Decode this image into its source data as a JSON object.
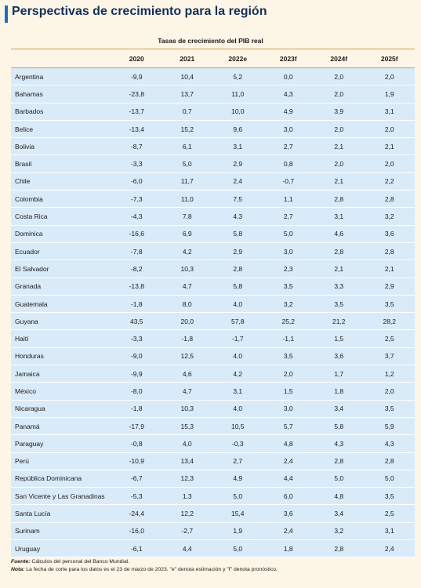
{
  "title": "Perspectivas de crecimiento para la región",
  "subtitle": "Tasas de crecimiento del PIB real",
  "columns": [
    "",
    "2020",
    "2021",
    "2022e",
    "2023f",
    "2024f",
    "2025f"
  ],
  "rows": [
    [
      "Argentina",
      "-9,9",
      "10,4",
      "5,2",
      "0,0",
      "2,0",
      "2,0"
    ],
    [
      "Bahamas",
      "-23,8",
      "13,7",
      "11,0",
      "4,3",
      "2,0",
      "1,9"
    ],
    [
      "Barbados",
      "-13,7",
      "0,7",
      "10,0",
      "4,9",
      "3,9",
      "3,1"
    ],
    [
      "Belice",
      "-13,4",
      "15,2",
      "9,6",
      "3,0",
      "2,0",
      "2,0"
    ],
    [
      "Bolivia",
      "-8,7",
      "6,1",
      "3,1",
      "2,7",
      "2,1",
      "2,1"
    ],
    [
      "Brasil",
      "-3,3",
      "5,0",
      "2,9",
      "0,8",
      "2,0",
      "2,0"
    ],
    [
      "Chile",
      "-6,0",
      "11,7",
      "2,4",
      "-0,7",
      "2,1",
      "2,2"
    ],
    [
      "Colombia",
      "-7,3",
      "11,0",
      "7,5",
      "1,1",
      "2,8",
      "2,8"
    ],
    [
      "Costa Rica",
      "-4,3",
      "7,8",
      "4,3",
      "2,7",
      "3,1",
      "3,2"
    ],
    [
      "Dominica",
      "-16,6",
      "6,9",
      "5,8",
      "5,0",
      "4,6",
      "3,6"
    ],
    [
      "Ecuador",
      "-7,8",
      "4,2",
      "2,9",
      "3,0",
      "2,8",
      "2,8"
    ],
    [
      "El Salvador",
      "-8,2",
      "10,3",
      "2,8",
      "2,3",
      "2,1",
      "2,1"
    ],
    [
      "Granada",
      "-13,8",
      "4,7",
      "5,8",
      "3,5",
      "3,3",
      "2,9"
    ],
    [
      "Guatemala",
      "-1,8",
      "8,0",
      "4,0",
      "3,2",
      "3,5",
      "3,5"
    ],
    [
      "Guyana",
      "43,5",
      "20,0",
      "57,8",
      "25,2",
      "21,2",
      "28,2"
    ],
    [
      "Haití",
      "-3,3",
      "-1,8",
      "-1,7",
      "-1,1",
      "1,5",
      "2,5"
    ],
    [
      "Honduras",
      "-9,0",
      "12,5",
      "4,0",
      "3,5",
      "3,6",
      "3,7"
    ],
    [
      "Jamaica",
      "-9,9",
      "4,6",
      "4,2",
      "2,0",
      "1,7",
      "1,2"
    ],
    [
      "México",
      "-8,0",
      "4,7",
      "3,1",
      "1,5",
      "1,8",
      "2,0"
    ],
    [
      "Nicaragua",
      "-1,8",
      "10,3",
      "4,0",
      "3,0",
      "3,4",
      "3,5"
    ],
    [
      "Panamá",
      "-17,9",
      "15,3",
      "10,5",
      "5,7",
      "5,8",
      "5,9"
    ],
    [
      "Paraguay",
      "-0,8",
      "4,0",
      "-0,3",
      "4,8",
      "4,3",
      "4,3"
    ],
    [
      "Perú",
      "-10,9",
      "13,4",
      "2,7",
      "2,4",
      "2,8",
      "2,8"
    ],
    [
      "República Dominicana",
      "-6,7",
      "12,3",
      "4,9",
      "4,4",
      "5,0",
      "5,0"
    ],
    [
      "San Vicente y Las Granadinas",
      "-5,3",
      "1,3",
      "5,0",
      "6,0",
      "4,8",
      "3,5"
    ],
    [
      "Santa Lucía",
      "-24,4",
      "12,2",
      "15,4",
      "3,6",
      "3,4",
      "2,5"
    ],
    [
      "Surinam",
      "-16,0",
      "-2,7",
      "1,9",
      "2,4",
      "3,2",
      "3,1"
    ],
    [
      "Uruguay",
      "-6,1",
      "4,4",
      "5,0",
      "1,8",
      "2,8",
      "2,4"
    ]
  ],
  "footnotes": {
    "source_label": "Fuente:",
    "source_text": " Cálculos del personal del Banco Mundial.",
    "note_label": "Nota:",
    "note_text": " La fecha de corte para los datos es el 23 de marzo de 2023. \"e\" denota estimación y \"f\" denota pronóstico."
  },
  "colors": {
    "background": "#fdf5e6",
    "title": "#12305a",
    "accent_bar": "#1f6fb5",
    "row_fill": "#d9ebf8",
    "rule": "#c9a84a"
  }
}
